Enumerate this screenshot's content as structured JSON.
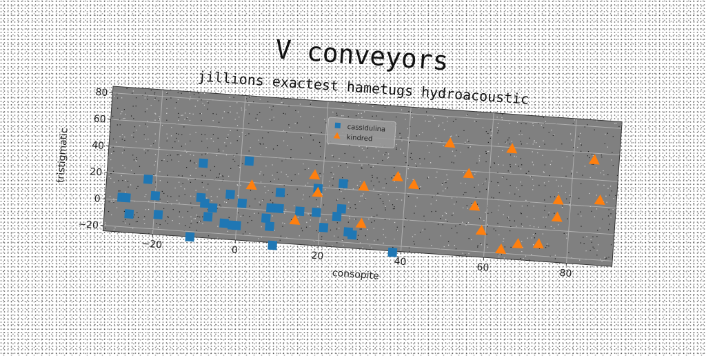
{
  "chart_data": {
    "type": "scatter",
    "title": "V conveyors",
    "subtitle": "jillions exactest hametugs hydroacoustic",
    "xlabel": "consopite",
    "ylabel": "tristigmatic",
    "xlim": [
      -32,
      91
    ],
    "ylim": [
      -24,
      85
    ],
    "xticks": [
      "−20",
      "0",
      "20",
      "40",
      "60",
      "80"
    ],
    "xtick_values": [
      -20,
      0,
      20,
      40,
      60,
      80
    ],
    "yticks": [
      "−20",
      "0",
      "20",
      "40",
      "60",
      "80"
    ],
    "ytick_values": [
      -20,
      0,
      20,
      40,
      60,
      80
    ],
    "grid": true,
    "legend_position": "top-center",
    "background_color": "#808080",
    "series": [
      {
        "name": "cassidulina",
        "marker": "square",
        "color": "#1f77b4",
        "x": [
          -28,
          -27,
          -26,
          -22,
          -20,
          -19,
          -11,
          -9,
          -9,
          -8,
          -7,
          -6,
          -3,
          -2,
          -1,
          0,
          1,
          2,
          7,
          8,
          8,
          9,
          10,
          10,
          15,
          19,
          19,
          21,
          24,
          25,
          25,
          27,
          28,
          38
        ],
        "y": [
          2,
          2,
          -10,
          17,
          5,
          -9,
          -24,
          6,
          32,
          2,
          -8,
          -1,
          -12,
          10,
          -13,
          -13,
          4,
          36,
          -6,
          -12,
          2,
          -26,
          14,
          2,
          1,
          1,
          19,
          -10,
          -1,
          5,
          24,
          -12,
          -14,
          -25
        ]
      },
      {
        "name": "kindred",
        "marker": "triangle",
        "color": "#ff7f0e",
        "x": [
          3,
          14,
          18,
          19,
          30,
          30,
          38,
          42,
          50,
          55,
          57,
          59,
          64,
          65,
          68,
          73,
          77,
          77,
          85,
          87
        ],
        "y": [
          18,
          -6,
          29,
          16,
          23,
          -5,
          32,
          27,
          60,
          38,
          14,
          -4,
          -17,
          59,
          -12,
          -11,
          23,
          10,
          55,
          25
        ]
      }
    ]
  }
}
